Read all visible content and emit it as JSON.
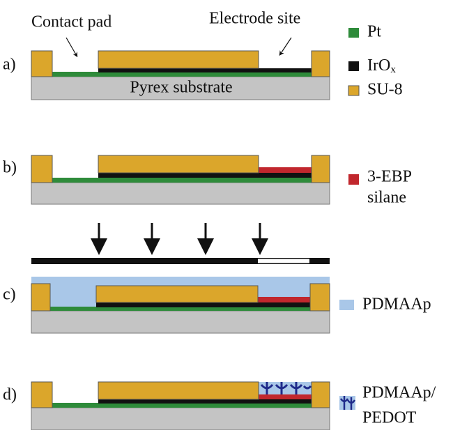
{
  "annotations": {
    "contact_pad": "Contact pad",
    "electrode_site": "Electrode site"
  },
  "panels": [
    {
      "label": "a)",
      "substrate": "Pyrex substrate"
    },
    {
      "label": "b)"
    },
    {
      "label": "c)"
    },
    {
      "label": "d)"
    }
  ],
  "legend": [
    {
      "lines": [
        "Pt"
      ]
    },
    {
      "lines": [
        "IrO",
        "x"
      ]
    },
    {
      "lines": [
        "SU-8"
      ]
    },
    {
      "lines": [
        "3-EBP",
        "silane"
      ]
    },
    {
      "lines": [
        "PDMAAp"
      ]
    },
    {
      "lines": [
        "PDMAAp/",
        "PEDOT"
      ]
    }
  ]
}
